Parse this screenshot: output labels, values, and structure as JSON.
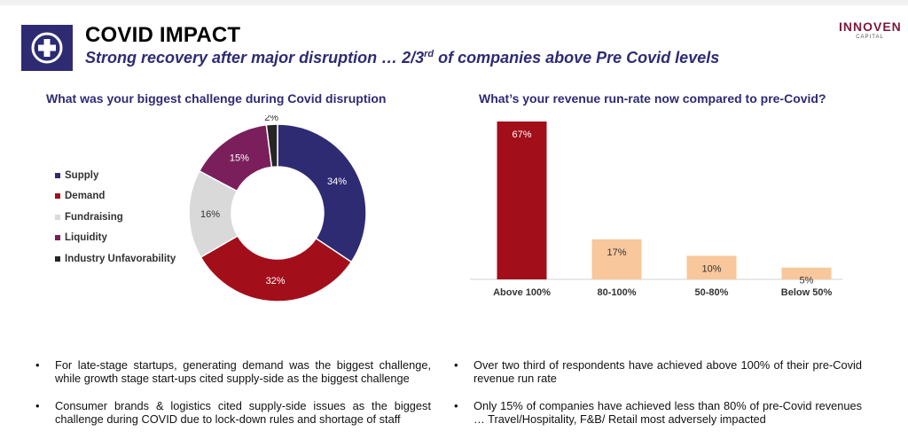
{
  "header": {
    "title": "COVID IMPACT",
    "subtitle_main": "Strong recovery after major disruption … 2/3",
    "subtitle_sup": "rd",
    "subtitle_tail": " of companies above Pre Covid levels",
    "brand_name": "INNOVEN",
    "brand_sub": "CAPITAL"
  },
  "colors": {
    "supply": "#2e2b73",
    "demand": "#a30e1b",
    "fundraising": "#d9d9d9",
    "liquidity": "#7a1f5c",
    "industry": "#262626",
    "bar_primary": "#a30e1b",
    "bar_secondary": "#f8c79b"
  },
  "chart_data": [
    {
      "type": "pie",
      "title": "What was your biggest challenge during Covid disruption",
      "categories": [
        "Supply",
        "Demand",
        "Fundraising",
        "Liquidity",
        "Industry Unfavorability"
      ],
      "values": [
        34,
        32,
        16,
        15,
        2
      ],
      "labels": [
        "34%",
        "32%",
        "16%",
        "15%",
        "2%"
      ],
      "donut": true,
      "legend": "left"
    },
    {
      "type": "bar",
      "title": "What’s your revenue run-rate now compared to pre-Covid?",
      "categories": [
        "Above 100%",
        "80-100%",
        "50-80%",
        "Below 50%"
      ],
      "values": [
        67,
        17,
        10,
        5
      ],
      "labels": [
        "67%",
        "17%",
        "10%",
        "5%"
      ],
      "ylim": [
        0,
        67
      ]
    }
  ],
  "bullets_left": [
    "For late-stage startups, generating demand was the biggest challenge, while growth stage start-ups cited supply-side as the biggest challenge",
    "Consumer brands & logistics cited supply-side issues as the biggest challenge during COVID due to lock-down rules and shortage of staff"
  ],
  "bullets_right": [
    "Over two third of respondents have achieved above 100% of their pre-Covid revenue run rate",
    "Only 15% of companies have achieved less than 80% of pre-Covid revenues … Travel/Hospitality, F&B/ Retail most adversely impacted"
  ],
  "bullet_symbol": "•"
}
